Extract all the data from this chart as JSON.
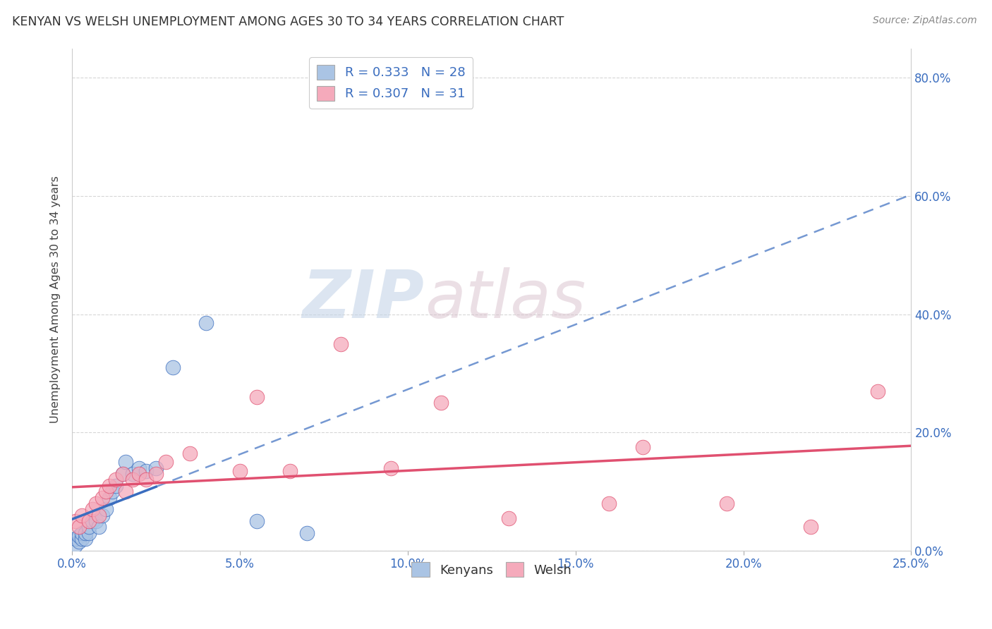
{
  "title": "KENYAN VS WELSH UNEMPLOYMENT AMONG AGES 30 TO 34 YEARS CORRELATION CHART",
  "source": "Source: ZipAtlas.com",
  "ylabel": "Unemployment Among Ages 30 to 34 years",
  "xlim": [
    0.0,
    0.25
  ],
  "ylim": [
    0.0,
    0.85
  ],
  "xticks": [
    0.0,
    0.05,
    0.1,
    0.15,
    0.2,
    0.25
  ],
  "yticks_right": [
    0.0,
    0.2,
    0.4,
    0.6,
    0.8
  ],
  "kenyan_color": "#aac4e4",
  "welsh_color": "#f5aabb",
  "kenyan_line_color": "#3a6dbf",
  "welsh_line_color": "#e05070",
  "kenyan_R": 0.333,
  "kenyan_N": 28,
  "welsh_R": 0.307,
  "welsh_N": 31,
  "watermark_ZIP": "ZIP",
  "watermark_atlas": "atlas",
  "kenyan_x": [
    0.001,
    0.001,
    0.002,
    0.002,
    0.003,
    0.003,
    0.004,
    0.004,
    0.005,
    0.005,
    0.006,
    0.007,
    0.008,
    0.009,
    0.01,
    0.011,
    0.012,
    0.013,
    0.015,
    0.016,
    0.018,
    0.02,
    0.022,
    0.025,
    0.03,
    0.04,
    0.055,
    0.07
  ],
  "kenyan_y": [
    0.01,
    0.02,
    0.015,
    0.025,
    0.02,
    0.03,
    0.02,
    0.03,
    0.03,
    0.04,
    0.05,
    0.05,
    0.04,
    0.06,
    0.07,
    0.09,
    0.1,
    0.11,
    0.13,
    0.15,
    0.13,
    0.14,
    0.135,
    0.14,
    0.31,
    0.385,
    0.05,
    0.03
  ],
  "welsh_x": [
    0.001,
    0.002,
    0.003,
    0.005,
    0.006,
    0.007,
    0.008,
    0.009,
    0.01,
    0.011,
    0.013,
    0.015,
    0.016,
    0.018,
    0.02,
    0.022,
    0.025,
    0.028,
    0.035,
    0.05,
    0.055,
    0.065,
    0.08,
    0.095,
    0.11,
    0.13,
    0.16,
    0.17,
    0.195,
    0.22,
    0.24
  ],
  "welsh_y": [
    0.05,
    0.04,
    0.06,
    0.05,
    0.07,
    0.08,
    0.06,
    0.09,
    0.1,
    0.11,
    0.12,
    0.13,
    0.1,
    0.12,
    0.13,
    0.12,
    0.13,
    0.15,
    0.165,
    0.135,
    0.26,
    0.135,
    0.35,
    0.14,
    0.25,
    0.055,
    0.08,
    0.175,
    0.08,
    0.04,
    0.27
  ]
}
